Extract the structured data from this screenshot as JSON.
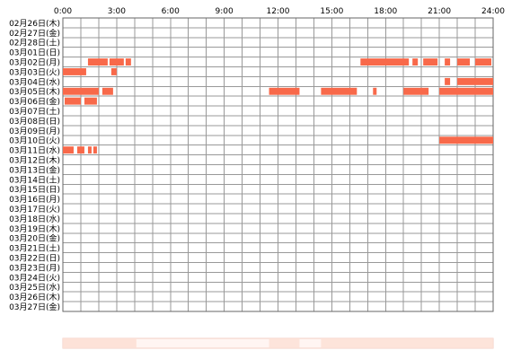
{
  "chart_data": {
    "type": "heatmap",
    "x_range": [
      0,
      24
    ],
    "x_unit": "hours",
    "x_ticks": [
      "0:00",
      "3:00",
      "6:00",
      "9:00",
      "12:00",
      "15:00",
      "18:00",
      "21:00",
      "24:00"
    ],
    "rows": [
      "02月26日(木)",
      "02月27日(金)",
      "02月28日(土)",
      "03月01日(日)",
      "03月02日(月)",
      "03月03日(火)",
      "03月04日(水)",
      "03月05日(木)",
      "03月06日(金)",
      "03月07日(土)",
      "03月08日(日)",
      "03月09日(月)",
      "03月10日(火)",
      "03月11日(水)",
      "03月12日(木)",
      "03月13日(金)",
      "03月14日(土)",
      "03月15日(日)",
      "03月16日(月)",
      "03月17日(火)",
      "03月18日(水)",
      "03月19日(木)",
      "03月20日(金)",
      "03月21日(土)",
      "03月22日(日)",
      "03月23日(月)",
      "03月24日(火)",
      "03月25日(水)",
      "03月26日(木)",
      "03月27日(金)"
    ],
    "intervals": [
      {
        "row": 4,
        "start": 1.4,
        "end": 2.5
      },
      {
        "row": 4,
        "start": 2.6,
        "end": 3.4
      },
      {
        "row": 4,
        "start": 3.5,
        "end": 3.8
      },
      {
        "row": 4,
        "start": 16.6,
        "end": 19.3
      },
      {
        "row": 4,
        "start": 19.5,
        "end": 19.8
      },
      {
        "row": 4,
        "start": 20.1,
        "end": 20.9
      },
      {
        "row": 4,
        "start": 21.3,
        "end": 21.6
      },
      {
        "row": 4,
        "start": 22.0,
        "end": 22.7
      },
      {
        "row": 4,
        "start": 23.0,
        "end": 23.9
      },
      {
        "row": 5,
        "start": 0.0,
        "end": 1.3
      },
      {
        "row": 5,
        "start": 2.7,
        "end": 3.0
      },
      {
        "row": 6,
        "start": 21.3,
        "end": 21.6
      },
      {
        "row": 6,
        "start": 22.0,
        "end": 24.0
      },
      {
        "row": 7,
        "start": 0.0,
        "end": 2.0
      },
      {
        "row": 7,
        "start": 2.2,
        "end": 2.8
      },
      {
        "row": 7,
        "start": 11.5,
        "end": 13.2
      },
      {
        "row": 7,
        "start": 14.4,
        "end": 16.4
      },
      {
        "row": 7,
        "start": 17.3,
        "end": 17.5
      },
      {
        "row": 7,
        "start": 19.0,
        "end": 20.4
      },
      {
        "row": 7,
        "start": 21.0,
        "end": 24.0
      },
      {
        "row": 8,
        "start": 0.1,
        "end": 1.0
      },
      {
        "row": 8,
        "start": 1.2,
        "end": 1.9
      },
      {
        "row": 12,
        "start": 21.0,
        "end": 24.0
      },
      {
        "row": 13,
        "start": 0.0,
        "end": 0.6
      },
      {
        "row": 13,
        "start": 0.8,
        "end": 1.2
      },
      {
        "row": 13,
        "start": 1.4,
        "end": 1.6
      },
      {
        "row": 13,
        "start": 1.7,
        "end": 1.9
      }
    ],
    "summary_bar": [
      {
        "start": 0.0,
        "end": 4.1,
        "level": 0.5
      },
      {
        "start": 11.5,
        "end": 13.2,
        "level": 0.35
      },
      {
        "start": 14.4,
        "end": 24.0,
        "level": 0.4
      }
    ],
    "grid": true,
    "colors": {
      "bar": "#f8694a",
      "bar_light": "#fcd2c4",
      "summary": "#fde0d5",
      "grid": "#999999",
      "border": "#666666",
      "tick": "#000088"
    }
  }
}
